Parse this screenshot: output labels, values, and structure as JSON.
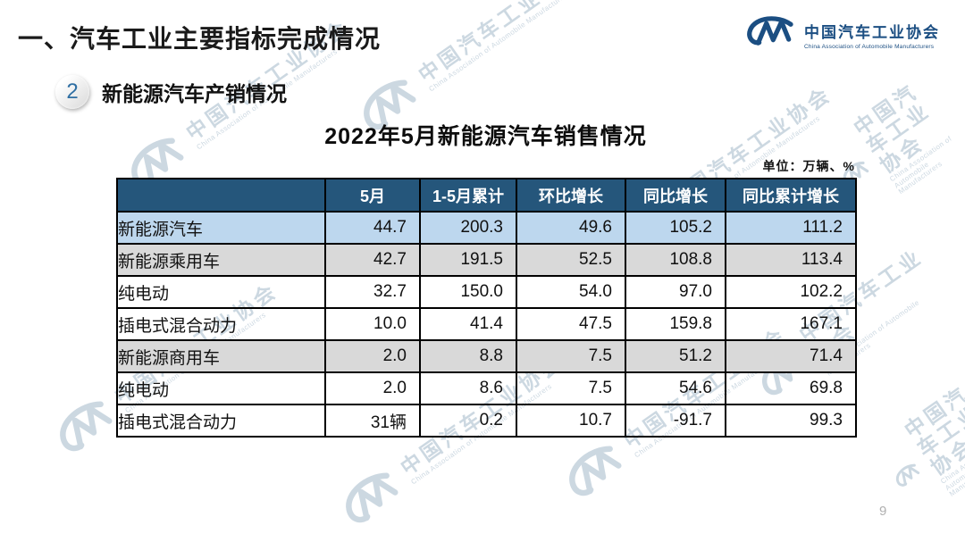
{
  "page": {
    "title": "一、汽车工业主要指标完成情况",
    "page_number": "9"
  },
  "logo": {
    "name_cn": "中国汽车工业协会",
    "name_en": "China Association of Automobile Manufacturers"
  },
  "section": {
    "badge_number": "2",
    "title": "新能源汽车产销情况"
  },
  "table": {
    "title": "2022年5月新能源汽车销售情况",
    "unit_note": "单位：万辆、%",
    "columns": [
      "",
      "5月",
      "1-5月累计",
      "环比增长",
      "同比增长",
      "同比累计增长"
    ],
    "rows": [
      {
        "label": "新能源汽车",
        "indent": 0,
        "style": "highlight",
        "values": [
          "44.7",
          "200.3",
          "49.6",
          "105.2",
          "111.2"
        ]
      },
      {
        "label": "新能源乘用车",
        "indent": 1,
        "style": "group",
        "values": [
          "42.7",
          "191.5",
          "52.5",
          "108.8",
          "113.4"
        ]
      },
      {
        "label": "纯电动",
        "indent": 2,
        "style": "plain",
        "values": [
          "32.7",
          "150.0",
          "54.0",
          "97.0",
          "102.2"
        ]
      },
      {
        "label": "插电式混合动力",
        "indent": 2,
        "style": "plain",
        "values": [
          "10.0",
          "41.4",
          "47.5",
          "159.8",
          "167.1"
        ]
      },
      {
        "label": "新能源商用车",
        "indent": 1,
        "style": "group",
        "values": [
          "2.0",
          "8.8",
          "7.5",
          "51.2",
          "71.4"
        ]
      },
      {
        "label": "纯电动",
        "indent": 2,
        "style": "plain",
        "values": [
          "2.0",
          "8.6",
          "7.5",
          "54.6",
          "69.8"
        ]
      },
      {
        "label": "插电式混合动力",
        "indent": 2,
        "style": "plain",
        "values": [
          "31辆",
          "0.2",
          "10.7",
          "-91.7",
          "99.3"
        ]
      }
    ]
  },
  "watermark": {
    "text": "中国汽车工业协会",
    "subtext": "China Association of Automobile Manufacturers"
  },
  "colors": {
    "table_header_bg": "#25567B",
    "row_highlight": "#BDD7EE",
    "row_group": "#D9D9D9",
    "logo_blue": "#1B4E82",
    "accent_blue": "#2F6FA3",
    "watermark": "#8FA9BE"
  }
}
